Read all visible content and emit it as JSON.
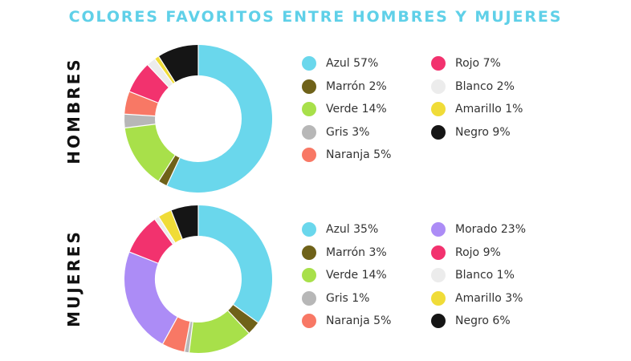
{
  "title": "COLORES FAVORITOS ENTRE HOMBRES Y MUJERES",
  "chart_data": [
    {
      "type": "pie",
      "label": "HOMBRES",
      "slices": [
        {
          "name": "Azul",
          "label": "Azul 57%",
          "value": 57,
          "color": "#6ad7ec"
        },
        {
          "name": "Marrón",
          "label": "Marrón 2%",
          "value": 2,
          "color": "#6f6219"
        },
        {
          "name": "Verde",
          "label": "Verde 14%",
          "value": 14,
          "color": "#a8e04a"
        },
        {
          "name": "Gris",
          "label": "Gris 3%",
          "value": 3,
          "color": "#b7b7b7"
        },
        {
          "name": "Naranja",
          "label": "Naranja 5%",
          "value": 5,
          "color": "#f87865"
        },
        {
          "name": "Rojo",
          "label": "Rojo 7%",
          "value": 7,
          "color": "#f2326e"
        },
        {
          "name": "Blanco",
          "label": "Blanco 2%",
          "value": 2,
          "color": "#ececec"
        },
        {
          "name": "Amarillo",
          "label": "Amarillo 1%",
          "value": 1,
          "color": "#f0dc38"
        },
        {
          "name": "Negro",
          "label": "Negro 9%",
          "value": 9,
          "color": "#151515"
        }
      ]
    },
    {
      "type": "pie",
      "label": "MUJERES",
      "slices": [
        {
          "name": "Azul",
          "label": "Azul 35%",
          "value": 35,
          "color": "#6ad7ec"
        },
        {
          "name": "Marrón",
          "label": "Marrón 3%",
          "value": 3,
          "color": "#6f6219"
        },
        {
          "name": "Verde",
          "label": "Verde 14%",
          "value": 14,
          "color": "#a8e04a"
        },
        {
          "name": "Gris",
          "label": "Gris 1%",
          "value": 1,
          "color": "#b7b7b7"
        },
        {
          "name": "Naranja",
          "label": "Naranja 5%",
          "value": 5,
          "color": "#f87865"
        },
        {
          "name": "Morado",
          "label": "Morado 23%",
          "value": 23,
          "color": "#ac8cf6"
        },
        {
          "name": "Rojo",
          "label": "Rojo 9%",
          "value": 9,
          "color": "#f2326e"
        },
        {
          "name": "Blanco",
          "label": "Blanco 1%",
          "value": 1,
          "color": "#ececec"
        },
        {
          "name": "Amarillo",
          "label": "Amarillo 3%",
          "value": 3,
          "color": "#f0dc38"
        },
        {
          "name": "Negro",
          "label": "Negro 6%",
          "value": 6,
          "color": "#151515"
        }
      ]
    }
  ]
}
